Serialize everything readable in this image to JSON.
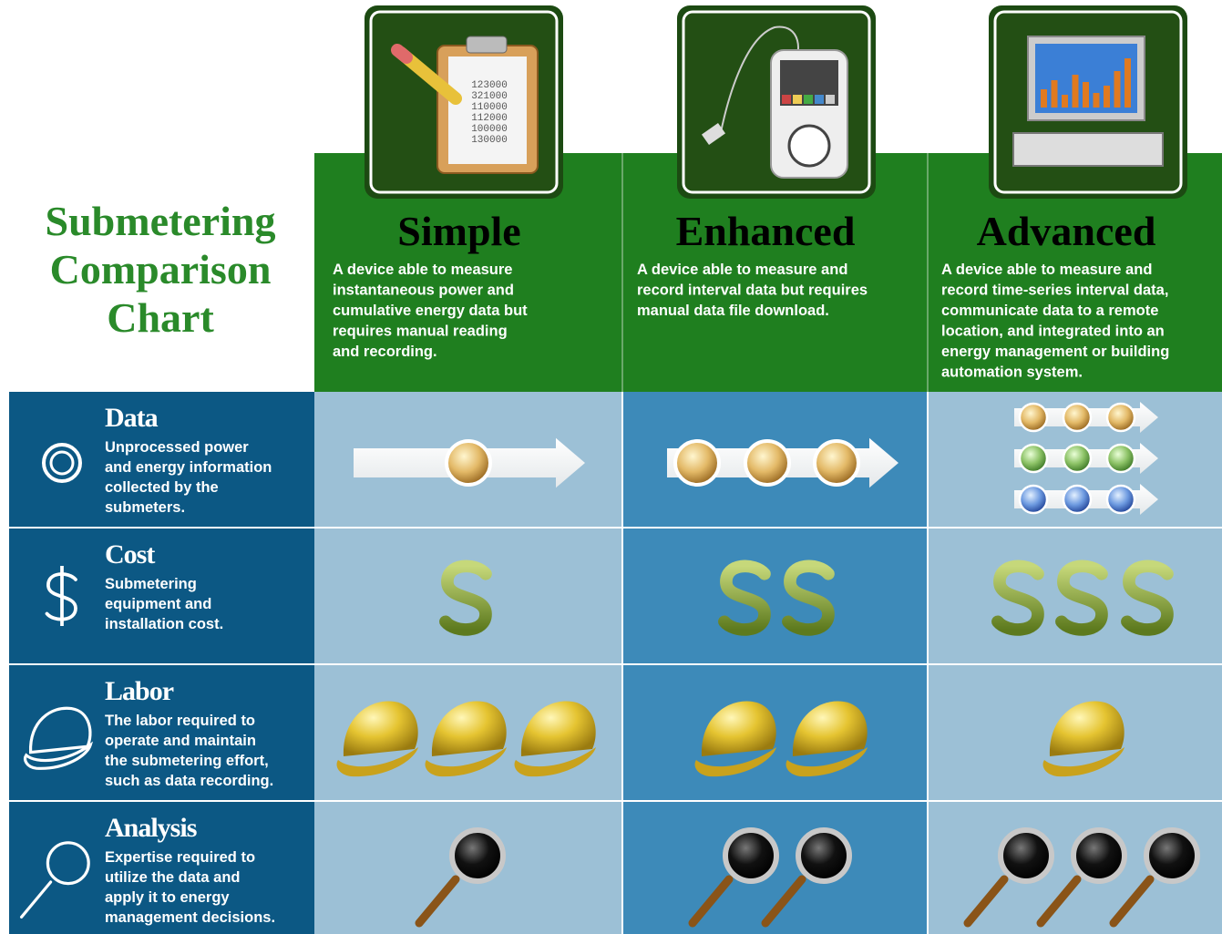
{
  "title": {
    "lines": [
      "Submetering",
      "Comparison",
      "Chart"
    ]
  },
  "columns": [
    {
      "name": "Simple",
      "description": [
        "A device able to measure",
        "instantaneous power and",
        "cumulative energy data but",
        "requires manual reading",
        "and recording."
      ]
    },
    {
      "name": "Enhanced",
      "description": [
        "A device able to measure and",
        "record interval data but requires",
        "manual data file download."
      ]
    },
    {
      "name": "Advanced",
      "description": [
        "A device able to measure and",
        "record time-series interval data,",
        "communicate data to a remote",
        "location, and integrated into an",
        "energy management or building",
        "automation system."
      ]
    }
  ],
  "clipboard_numbers": [
    "123000",
    "321000",
    "110000",
    "112000",
    "100000",
    "130000"
  ],
  "rows": [
    {
      "name": "Data",
      "description": [
        "Unprocessed power",
        "and energy information",
        "collected by the",
        "submeters."
      ]
    },
    {
      "name": "Cost",
      "description": [
        "Submetering",
        "equipment and",
        "installation cost."
      ]
    },
    {
      "name": "Labor",
      "description": [
        "The labor required to",
        "operate and maintain",
        "the submetering effort,",
        "such as data recording."
      ]
    },
    {
      "name": "Analysis",
      "description": [
        "Expertise required to",
        "utilize the data and",
        "apply it to energy",
        "management decisions."
      ]
    }
  ]
}
